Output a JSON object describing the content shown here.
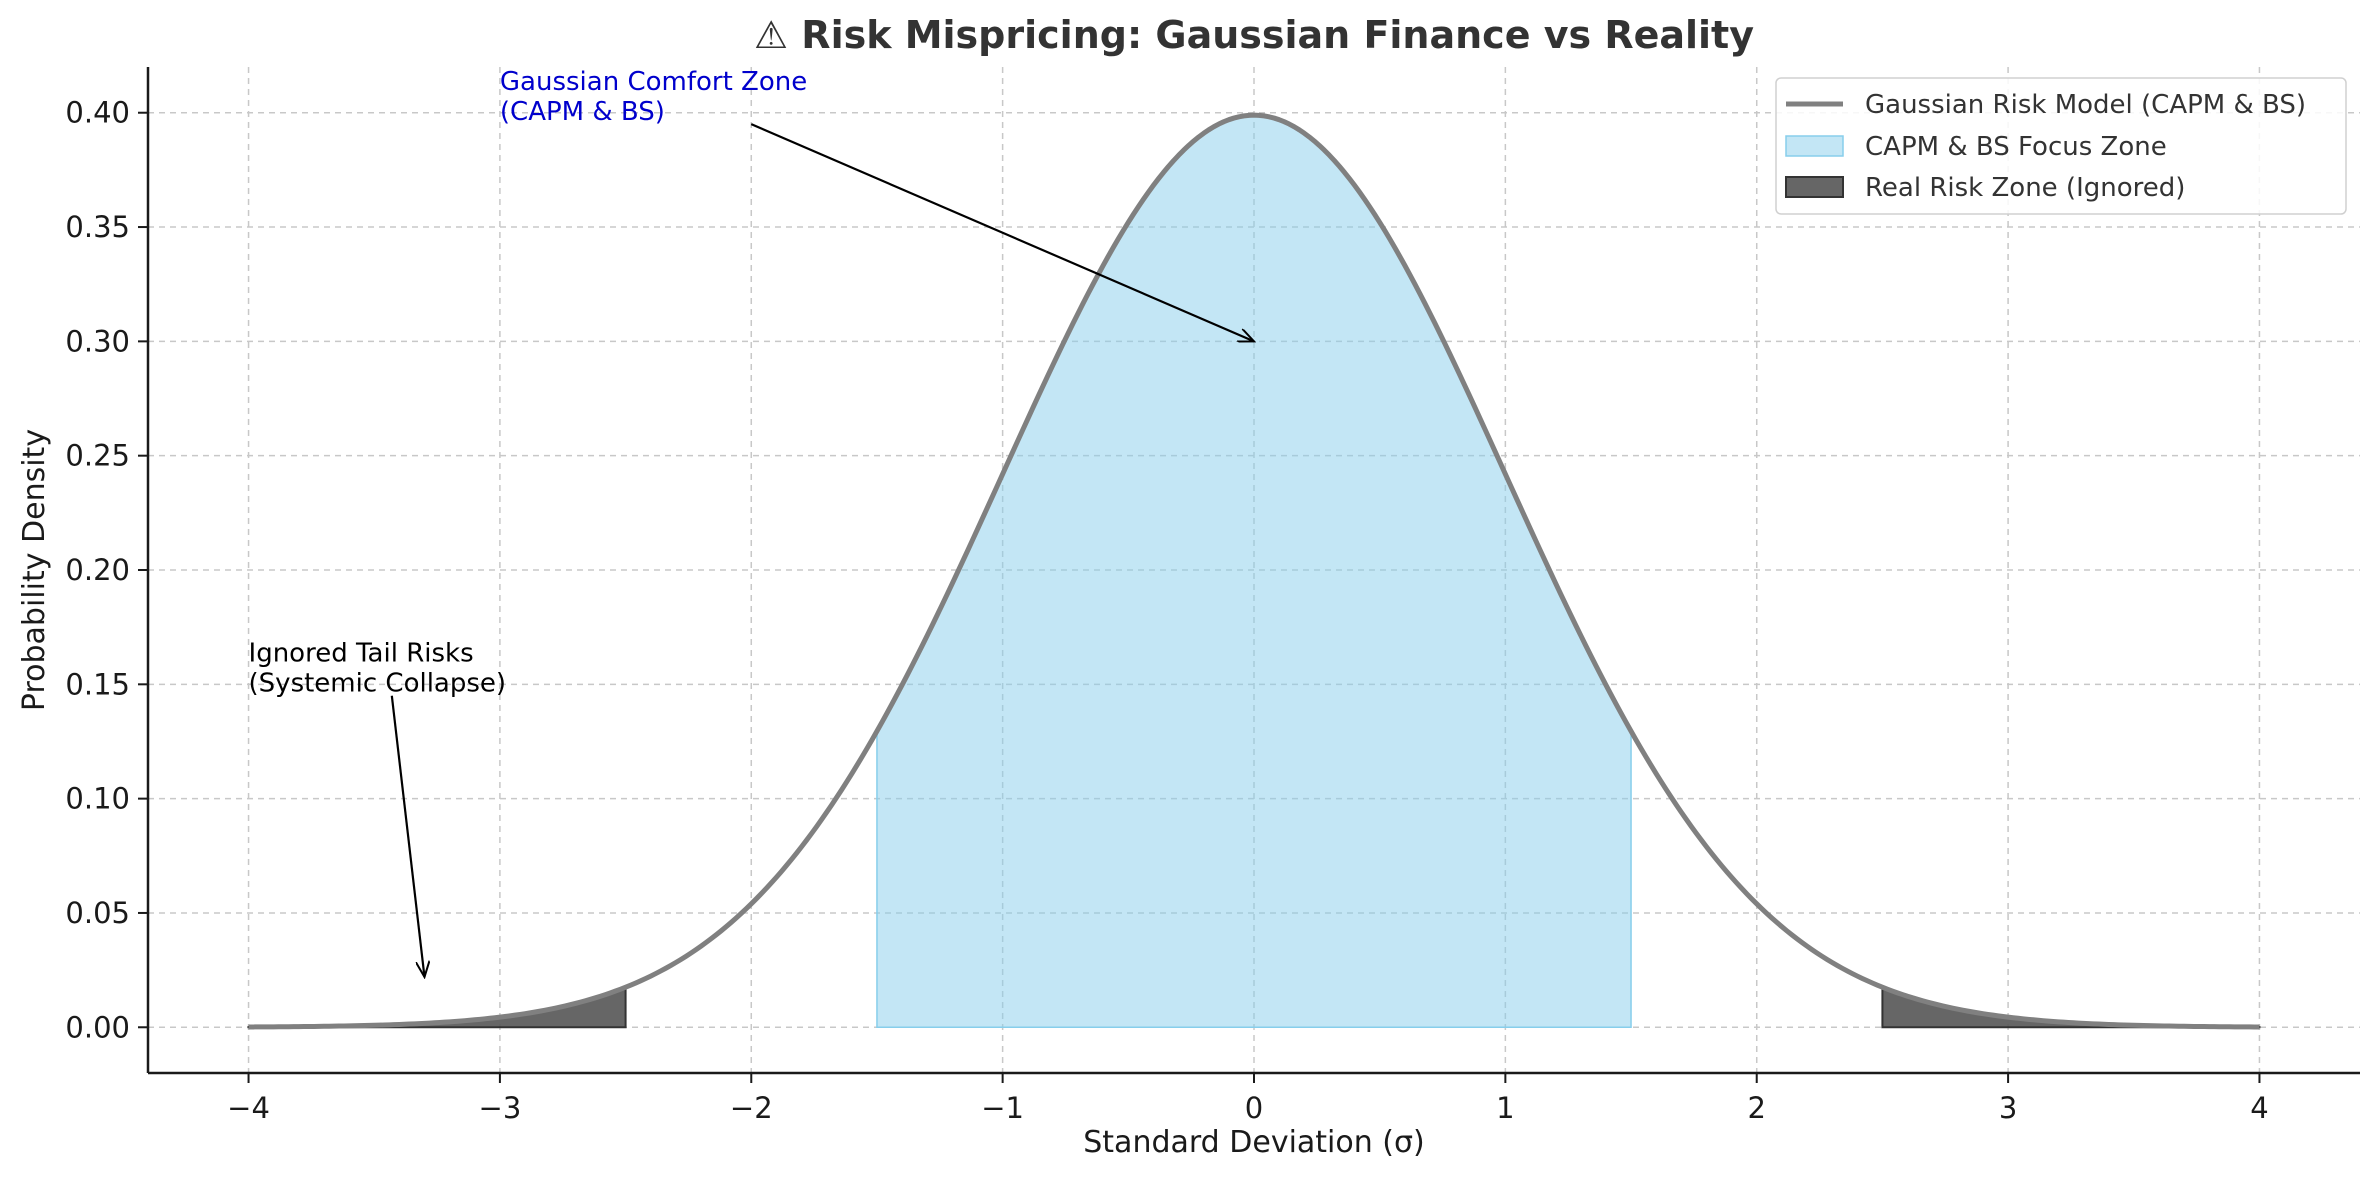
{
  "chart_data": {
    "type": "area",
    "title": "⚠ Risk Mispricing: Gaussian Finance vs Reality",
    "xlabel": "Standard Deviation (σ)",
    "ylabel": "Probability Density",
    "xlim": [
      -4.4,
      4.4
    ],
    "ylim": [
      -0.02,
      0.42
    ],
    "xticks": [
      -4,
      -3,
      -2,
      -1,
      0,
      1,
      2,
      3,
      4
    ],
    "xtick_labels": [
      "−4",
      "−3",
      "−2",
      "−1",
      "0",
      "1",
      "2",
      "3",
      "4"
    ],
    "yticks": [
      0.0,
      0.05,
      0.1,
      0.15,
      0.2,
      0.25,
      0.3,
      0.35,
      0.4
    ],
    "ytick_labels": [
      "0.00",
      "0.05",
      "0.10",
      "0.15",
      "0.20",
      "0.25",
      "0.30",
      "0.35",
      "0.40"
    ],
    "grid": true,
    "legend_position": "top-right",
    "series": [
      {
        "name": "Gaussian Risk Model (CAPM & BS)",
        "kind": "line",
        "color": "#808080",
        "x": [
          -4,
          -3.5,
          -3,
          -2.5,
          -2,
          -1.5,
          -1,
          -0.5,
          0,
          0.5,
          1,
          1.5,
          2,
          2.5,
          3,
          3.5,
          4
        ],
        "y": [
          0.0001,
          0.0009,
          0.0044,
          0.0175,
          0.054,
          0.1295,
          0.242,
          0.3521,
          0.3989,
          0.3521,
          0.242,
          0.1295,
          0.054,
          0.0175,
          0.0044,
          0.0009,
          0.0001
        ]
      },
      {
        "name": "CAPM & BS Focus Zone",
        "kind": "fill",
        "color": "#87ceeb",
        "range": [
          -1.5,
          1.5
        ]
      },
      {
        "name": "Real Risk Zone (Ignored)",
        "kind": "fill",
        "color": "#555555",
        "ranges": [
          [
            -4,
            -2.5
          ],
          [
            2.5,
            4
          ]
        ]
      }
    ],
    "annotations": [
      {
        "text_lines": [
          "Gaussian Comfort Zone",
          "(CAPM & BS)"
        ],
        "color": "#0000cc",
        "text_at": [
          -3,
          0.41
        ],
        "arrow_from": [
          -2,
          0.395
        ],
        "arrow_to": [
          0,
          0.3
        ]
      },
      {
        "text_lines": [
          "Ignored Tail Risks",
          "(Systemic Collapse)"
        ],
        "color": "#000000",
        "text_at": [
          -4,
          0.16
        ],
        "arrow_from": [
          -3.43,
          0.145
        ],
        "arrow_to": [
          -3.3,
          0.022
        ]
      }
    ]
  }
}
